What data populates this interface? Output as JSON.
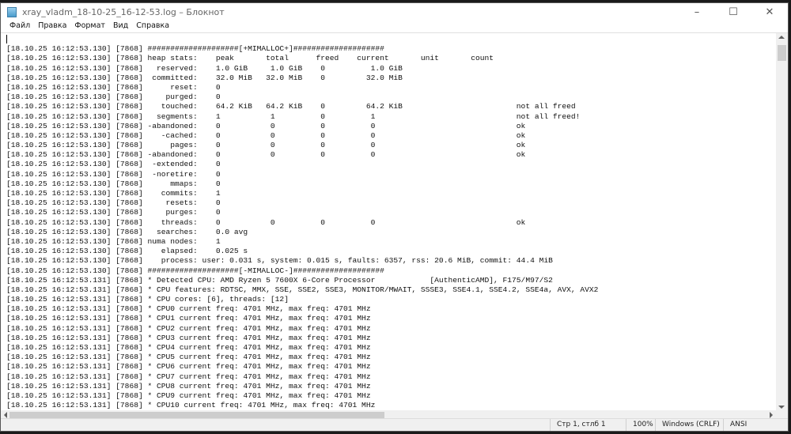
{
  "window": {
    "title": "xray_vladm_18-10-25_16-12-53.log – Блокнот",
    "minimize": "–",
    "maximize": "☐",
    "close": "✕"
  },
  "menu": [
    "Файл",
    "Правка",
    "Формат",
    "Вид",
    "Справка"
  ],
  "editor": {
    "lines": [
      "",
      "[18.10.25 16:12:53.130] [7868] ####################[+MIMALLOC+]####################",
      "[18.10.25 16:12:53.130] [7868] heap stats:    peak       total      freed    current       unit       count",
      "[18.10.25 16:12:53.130] [7868]   reserved:    1.0 GiB     1.0 GiB    0          1.0 GiB",
      "[18.10.25 16:12:53.130] [7868]  committed:    32.0 MiB   32.0 MiB    0         32.0 MiB",
      "[18.10.25 16:12:53.130] [7868]      reset:    0",
      "[18.10.25 16:12:53.130] [7868]     purged:    0",
      "[18.10.25 16:12:53.130] [7868]    touched:    64.2 KiB   64.2 KiB    0         64.2 KiB                         not all freed",
      "[18.10.25 16:12:53.130] [7868]   segments:    1           1          0          1                               not all freed!",
      "[18.10.25 16:12:53.130] [7868] -abandoned:    0           0          0          0                               ok",
      "[18.10.25 16:12:53.130] [7868]    -cached:    0           0          0          0                               ok",
      "[18.10.25 16:12:53.130] [7868]      pages:    0           0          0          0                               ok",
      "[18.10.25 16:12:53.130] [7868] -abandoned:    0           0          0          0                               ok",
      "[18.10.25 16:12:53.130] [7868]  -extended:    0",
      "[18.10.25 16:12:53.130] [7868]  -noretire:    0",
      "[18.10.25 16:12:53.130] [7868]      mmaps:    0",
      "[18.10.25 16:12:53.130] [7868]    commits:    1",
      "[18.10.25 16:12:53.130] [7868]     resets:    0",
      "[18.10.25 16:12:53.130] [7868]     purges:    0",
      "[18.10.25 16:12:53.130] [7868]    threads:    0           0          0          0                               ok",
      "[18.10.25 16:12:53.130] [7868]   searches:    0.0 avg",
      "[18.10.25 16:12:53.130] [7868] numa nodes:    1",
      "[18.10.25 16:12:53.130] [7868]    elapsed:    0.025 s",
      "[18.10.25 16:12:53.130] [7868]    process: user: 0.031 s, system: 0.015 s, faults: 6357, rss: 20.6 MiB, commit: 44.4 MiB",
      "[18.10.25 16:12:53.130] [7868] ####################[-MIMALLOC-]####################",
      "[18.10.25 16:12:53.131] [7868] * Detected CPU: AMD Ryzen 5 7600X 6-Core Processor            [AuthenticAMD], F175/M97/S2",
      "[18.10.25 16:12:53.131] [7868] * CPU features: RDTSC, MMX, SSE, SSE2, SSE3, MONITOR/MWAIT, SSSE3, SSE4.1, SSE4.2, SSE4a, AVX, AVX2",
      "[18.10.25 16:12:53.131] [7868] * CPU cores: [6], threads: [12]",
      "[18.10.25 16:12:53.131] [7868] * CPU0 current freq: 4701 MHz, max freq: 4701 MHz",
      "[18.10.25 16:12:53.131] [7868] * CPU1 current freq: 4701 MHz, max freq: 4701 MHz",
      "[18.10.25 16:12:53.131] [7868] * CPU2 current freq: 4701 MHz, max freq: 4701 MHz",
      "[18.10.25 16:12:53.131] [7868] * CPU3 current freq: 4701 MHz, max freq: 4701 MHz",
      "[18.10.25 16:12:53.131] [7868] * CPU4 current freq: 4701 MHz, max freq: 4701 MHz",
      "[18.10.25 16:12:53.131] [7868] * CPU5 current freq: 4701 MHz, max freq: 4701 MHz",
      "[18.10.25 16:12:53.131] [7868] * CPU6 current freq: 4701 MHz, max freq: 4701 MHz",
      "[18.10.25 16:12:53.131] [7868] * CPU7 current freq: 4701 MHz, max freq: 4701 MHz",
      "[18.10.25 16:12:53.131] [7868] * CPU8 current freq: 4701 MHz, max freq: 4701 MHz",
      "[18.10.25 16:12:53.131] [7868] * CPU9 current freq: 4701 MHz, max freq: 4701 MHz",
      "[18.10.25 16:12:53.131] [7868] * CPU10 current freq: 4701 MHz, max freq: 4701 MHz"
    ]
  },
  "statusbar": {
    "position": "Стр 1, стлб 1",
    "zoom": "100%",
    "line_ending": "Windows (CRLF)",
    "encoding": "ANSI"
  }
}
